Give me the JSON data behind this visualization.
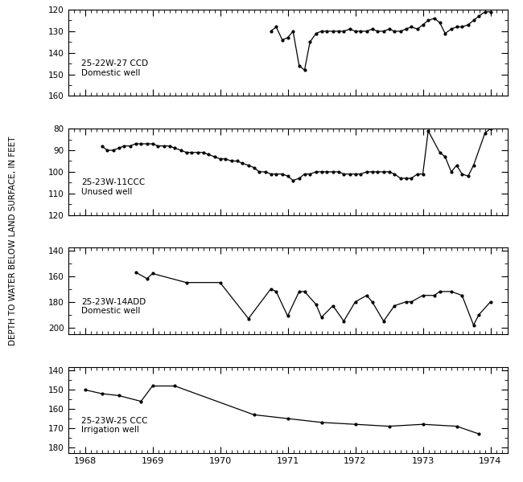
{
  "panel1": {
    "label": "25-22W-27 CCD\nDomestic well",
    "ylim": [
      160,
      120
    ],
    "yticks": [
      120,
      130,
      140,
      150,
      160
    ],
    "x": [
      1970.75,
      1970.83,
      1970.92,
      1971.0,
      1971.08,
      1971.17,
      1971.25,
      1971.33,
      1971.42,
      1971.5,
      1971.58,
      1971.67,
      1971.75,
      1971.83,
      1971.92,
      1972.0,
      1972.08,
      1972.17,
      1972.25,
      1972.33,
      1972.42,
      1972.5,
      1972.58,
      1972.67,
      1972.75,
      1972.83,
      1972.92,
      1973.0,
      1973.08,
      1973.17,
      1973.25,
      1973.33,
      1973.42,
      1973.5,
      1973.58,
      1973.67,
      1973.75,
      1973.83,
      1973.92,
      1974.0
    ],
    "y": [
      130,
      128,
      134,
      133,
      130,
      146,
      148,
      135,
      131,
      130,
      130,
      130,
      130,
      130,
      129,
      130,
      130,
      130,
      129,
      130,
      130,
      129,
      130,
      130,
      129,
      128,
      129,
      127,
      125,
      124,
      126,
      131,
      129,
      128,
      128,
      127,
      125,
      123,
      121,
      121
    ]
  },
  "panel2": {
    "label": "25-23W-11CCC\nUnused well",
    "ylim": [
      120,
      80
    ],
    "yticks": [
      80,
      90,
      100,
      110,
      120
    ],
    "x": [
      1968.25,
      1968.33,
      1968.42,
      1968.5,
      1968.58,
      1968.67,
      1968.75,
      1968.83,
      1968.92,
      1969.0,
      1969.08,
      1969.17,
      1969.25,
      1969.33,
      1969.42,
      1969.5,
      1969.58,
      1969.67,
      1969.75,
      1969.83,
      1969.92,
      1970.0,
      1970.08,
      1970.17,
      1970.25,
      1970.33,
      1970.42,
      1970.5,
      1970.58,
      1970.67,
      1970.75,
      1970.83,
      1970.92,
      1971.0,
      1971.08,
      1971.17,
      1971.25,
      1971.33,
      1971.42,
      1971.5,
      1971.58,
      1971.67,
      1971.75,
      1971.83,
      1971.92,
      1972.0,
      1972.08,
      1972.17,
      1972.25,
      1972.33,
      1972.42,
      1972.5,
      1972.58,
      1972.67,
      1972.75,
      1972.83,
      1972.92,
      1973.0,
      1973.08,
      1973.25,
      1973.33,
      1973.42,
      1973.5,
      1973.58,
      1973.67,
      1973.75,
      1973.92,
      1974.0
    ],
    "y": [
      88,
      90,
      90,
      89,
      88,
      88,
      87,
      87,
      87,
      87,
      88,
      88,
      88,
      89,
      90,
      91,
      91,
      91,
      91,
      92,
      93,
      94,
      94,
      95,
      95,
      96,
      97,
      98,
      100,
      100,
      101,
      101,
      101,
      102,
      104,
      103,
      101,
      101,
      100,
      100,
      100,
      100,
      100,
      101,
      101,
      101,
      101,
      100,
      100,
      100,
      100,
      100,
      101,
      103,
      103,
      103,
      101,
      101,
      81,
      91,
      93,
      100,
      97,
      101,
      102,
      97,
      82,
      80
    ]
  },
  "panel3": {
    "label": "25-23W-14ADD\nDomestic well",
    "ylim": [
      205,
      138
    ],
    "yticks": [
      140,
      160,
      180,
      200
    ],
    "x": [
      1968.75,
      1968.92,
      1969.0,
      1969.5,
      1970.0,
      1970.42,
      1970.75,
      1970.83,
      1971.0,
      1971.17,
      1971.25,
      1971.42,
      1971.5,
      1971.67,
      1971.83,
      1972.0,
      1972.17,
      1972.25,
      1972.42,
      1972.58,
      1972.75,
      1972.83,
      1973.0,
      1973.17,
      1973.25,
      1973.42,
      1973.58,
      1973.75,
      1973.83,
      1974.0
    ],
    "y": [
      157,
      162,
      158,
      165,
      165,
      193,
      170,
      172,
      191,
      172,
      172,
      182,
      192,
      183,
      195,
      180,
      175,
      180,
      195,
      183,
      180,
      180,
      175,
      175,
      172,
      172,
      175,
      198,
      190,
      180
    ]
  },
  "panel4": {
    "label": "25-23W-25 CCC\nIrrigation well",
    "ylim": [
      183,
      138
    ],
    "yticks": [
      140,
      150,
      160,
      170,
      180
    ],
    "x": [
      1968.0,
      1968.25,
      1968.5,
      1968.83,
      1969.0,
      1969.33,
      1970.5,
      1971.0,
      1971.5,
      1972.0,
      1972.5,
      1973.0,
      1973.5,
      1973.83
    ],
    "y": [
      150,
      152,
      153,
      156,
      148,
      148,
      163,
      165,
      167,
      168,
      169,
      168,
      169,
      173
    ]
  },
  "xlim": [
    1967.75,
    1974.25
  ],
  "xticks": [
    1968,
    1969,
    1970,
    1971,
    1972,
    1973,
    1974
  ],
  "xticklabels": [
    "1968",
    "1969",
    "1970",
    "1971",
    "1972",
    "1973",
    "1974"
  ],
  "ylabel": "DEPTH TO WATER BELOW LAND SURFACE, IN FEET",
  "bg_color": "#ffffff",
  "line_color": "#000000",
  "marker": "o",
  "markersize": 2.0,
  "linewidth": 0.9
}
